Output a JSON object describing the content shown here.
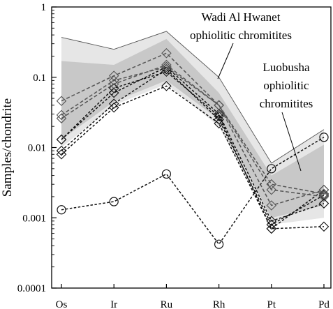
{
  "chart_data": {
    "type": "line",
    "xlabel": "",
    "ylabel": "Samples/chondrite",
    "yscale": "log",
    "ylim": [
      0.0001,
      1
    ],
    "yticks": [
      0.0001,
      0.001,
      0.01,
      0.1,
      1
    ],
    "ytick_labels": [
      "0.0001",
      "0.001",
      "0.01",
      "0.1",
      "1"
    ],
    "categories": [
      "Os",
      "Ir",
      "Ru",
      "Rh",
      "Pt",
      "Pd"
    ],
    "annotations": {
      "wadi": [
        "Wadi Al Hwanet",
        "ophiolitic chromitites"
      ],
      "luobusha": [
        "Luobusha",
        "ophiolitic",
        "chromitites"
      ]
    },
    "fields": [
      {
        "upper": [
          0.37,
          0.25,
          0.45,
          0.1,
          0.006,
          0.018
        ],
        "lower": [
          0.01,
          0.04,
          0.08,
          0.02,
          0.0008,
          0.001
        ]
      },
      {
        "upper": [
          0.17,
          0.15,
          0.35,
          0.06,
          0.004,
          0.011
        ],
        "lower": [
          0.013,
          0.045,
          0.09,
          0.025,
          0.001,
          0.0015
        ]
      }
    ],
    "series": [
      {
        "marker": "circle",
        "dash": "short",
        "color": "#111111",
        "values": [
          0.0013,
          0.0017,
          0.0042,
          0.00042,
          0.005,
          0.014
        ]
      },
      {
        "marker": "diamond",
        "dash": "short",
        "color": "#111111",
        "values": [
          0.008,
          0.037,
          0.075,
          0.022,
          0.0007,
          0.0025
        ]
      },
      {
        "marker": "diamond",
        "dash": "short",
        "color": "#111111",
        "values": [
          0.009,
          0.042,
          0.13,
          0.025,
          0.0008,
          0.0021
        ]
      },
      {
        "marker": "diamond",
        "dash": "short",
        "color": "#111111",
        "values": [
          0.013,
          0.06,
          0.14,
          0.03,
          0.0009,
          0.0016
        ]
      },
      {
        "marker": "diamond",
        "dash": "short",
        "color": "#111111",
        "values": [
          0.013,
          0.07,
          0.12,
          0.028,
          0.0007,
          0.00075
        ]
      },
      {
        "marker": "diamond",
        "dash": "medium",
        "color": "#555555",
        "values": [
          0.026,
          0.08,
          0.15,
          0.04,
          0.0015,
          0.0025
        ]
      },
      {
        "marker": "diamond",
        "dash": "medium",
        "color": "#555555",
        "values": [
          0.029,
          0.09,
          0.14,
          0.04,
          0.0025,
          0.002
        ]
      },
      {
        "marker": "diamond",
        "dash": "medium",
        "color": "#555555",
        "values": [
          0.046,
          0.105,
          0.22,
          0.04,
          0.003,
          0.0022
        ]
      }
    ]
  }
}
